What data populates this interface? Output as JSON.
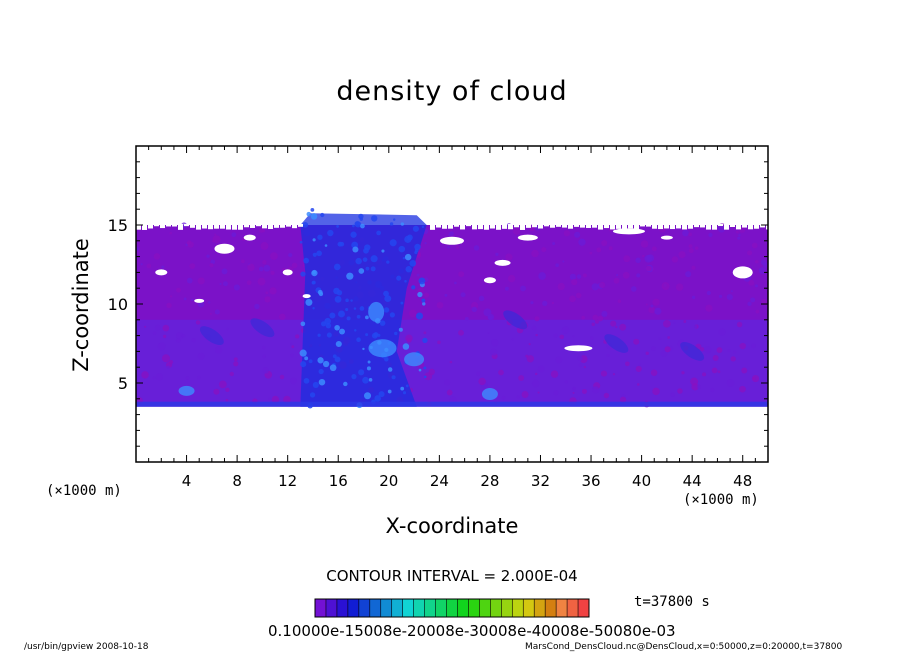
{
  "chart_data": {
    "type": "heatmap",
    "title": "density of cloud",
    "xlabel": "X-coordinate",
    "ylabel": "Z-coordinate",
    "x_unit": "(×1000 m)",
    "z_unit": "(×1000 m)",
    "xlim": [
      0,
      50
    ],
    "ylim": [
      0,
      20
    ],
    "x_ticks": [
      4,
      8,
      12,
      16,
      20,
      24,
      28,
      32,
      36,
      40,
      44,
      48
    ],
    "y_ticks": [
      5,
      10,
      15
    ],
    "cloud_base_km": 3.5,
    "cloud_top_km": 15.0,
    "convective_core": {
      "x_range_km": [
        13,
        23
      ],
      "top_km": 16.0
    },
    "contour_interval": "CONTOUR INTERVAL = 2.000E-04",
    "colorbar": {
      "levels": 25,
      "min_label": "0.1000e-15",
      "labels_text": "0.10000e-15008e-20008e-30008e-40008e-50080e-03"
    },
    "time_label": "t=37800 s"
  },
  "footer": {
    "left": "/usr/bin/gpview   2008-10-18",
    "right": "MarsCond_DensCloud.nc@DensCloud,x=0:50000,z=0:20000,t=37800"
  },
  "colors": {
    "cloud_base": "#7b12c8",
    "cloud_dense": "#5a2ae6",
    "core_blue": "#1a2fe0",
    "core_bright": "#3c8cff"
  }
}
